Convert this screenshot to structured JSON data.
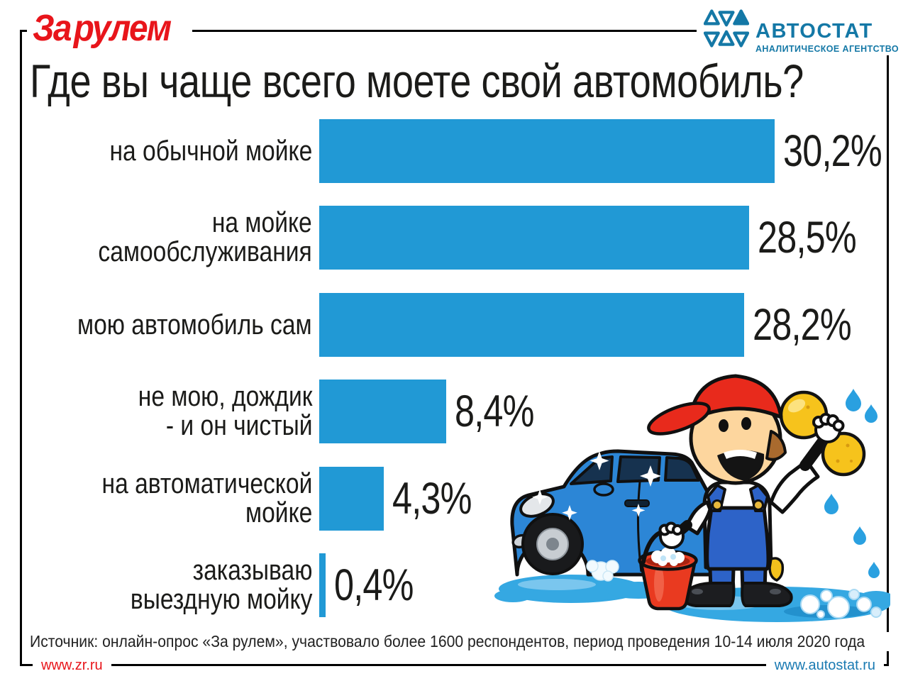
{
  "branding": {
    "zr_logo_text": "За рулем",
    "autostat_logo_text": "АВТОСТАТ",
    "autostat_logo_subtitle": "АНАЛИТИЧЕСКОЕ АГЕНТСТВО"
  },
  "chart_data": {
    "type": "bar",
    "orientation": "horizontal",
    "title": "Где вы чаще всего моете свой автомобиль?",
    "categories": [
      "на обычной мойке",
      "на мойке самообслуживания",
      "мою автомобиль сам",
      "не мою, дождик - и он чистый",
      "на автоматической мойке",
      "заказываю выездную мойку"
    ],
    "category_lines": [
      [
        "на обычной мойке"
      ],
      [
        "на мойке",
        "самообслуживания"
      ],
      [
        "мою автомобиль сам"
      ],
      [
        "не мою, дождик",
        "- и он чистый"
      ],
      [
        "на автоматической",
        "мойке"
      ],
      [
        "заказываю",
        "выездную мойку"
      ]
    ],
    "values": [
      30.2,
      28.5,
      28.2,
      8.4,
      4.3,
      0.4
    ],
    "value_labels": [
      "30,2%",
      "28,5%",
      "28,2%",
      "8,4%",
      "4,3%",
      "0,4%"
    ],
    "xmax": 30.2,
    "bar_color": "#2199d5",
    "grid": false,
    "legend": "none"
  },
  "source_note": "Источник: онлайн-опрос «За рулем», участвовало более 1600 респондентов, период проведения 10-14 июля 2020 года",
  "footer": {
    "left_link": "www.zr.ru",
    "right_link": "www.autostat.ru"
  },
  "illustration": {
    "name": "car-wash-cartoon",
    "elements": [
      "blue-car",
      "boy-in-red-cap",
      "yellow-sponge",
      "red-bucket",
      "water-puddle",
      "water-drops",
      "soap-bubbles"
    ]
  },
  "colors": {
    "bar": "#2199d5",
    "zr_red": "#e8151b",
    "autostat_blue": "#1478a6",
    "text": "#1b1b19"
  }
}
